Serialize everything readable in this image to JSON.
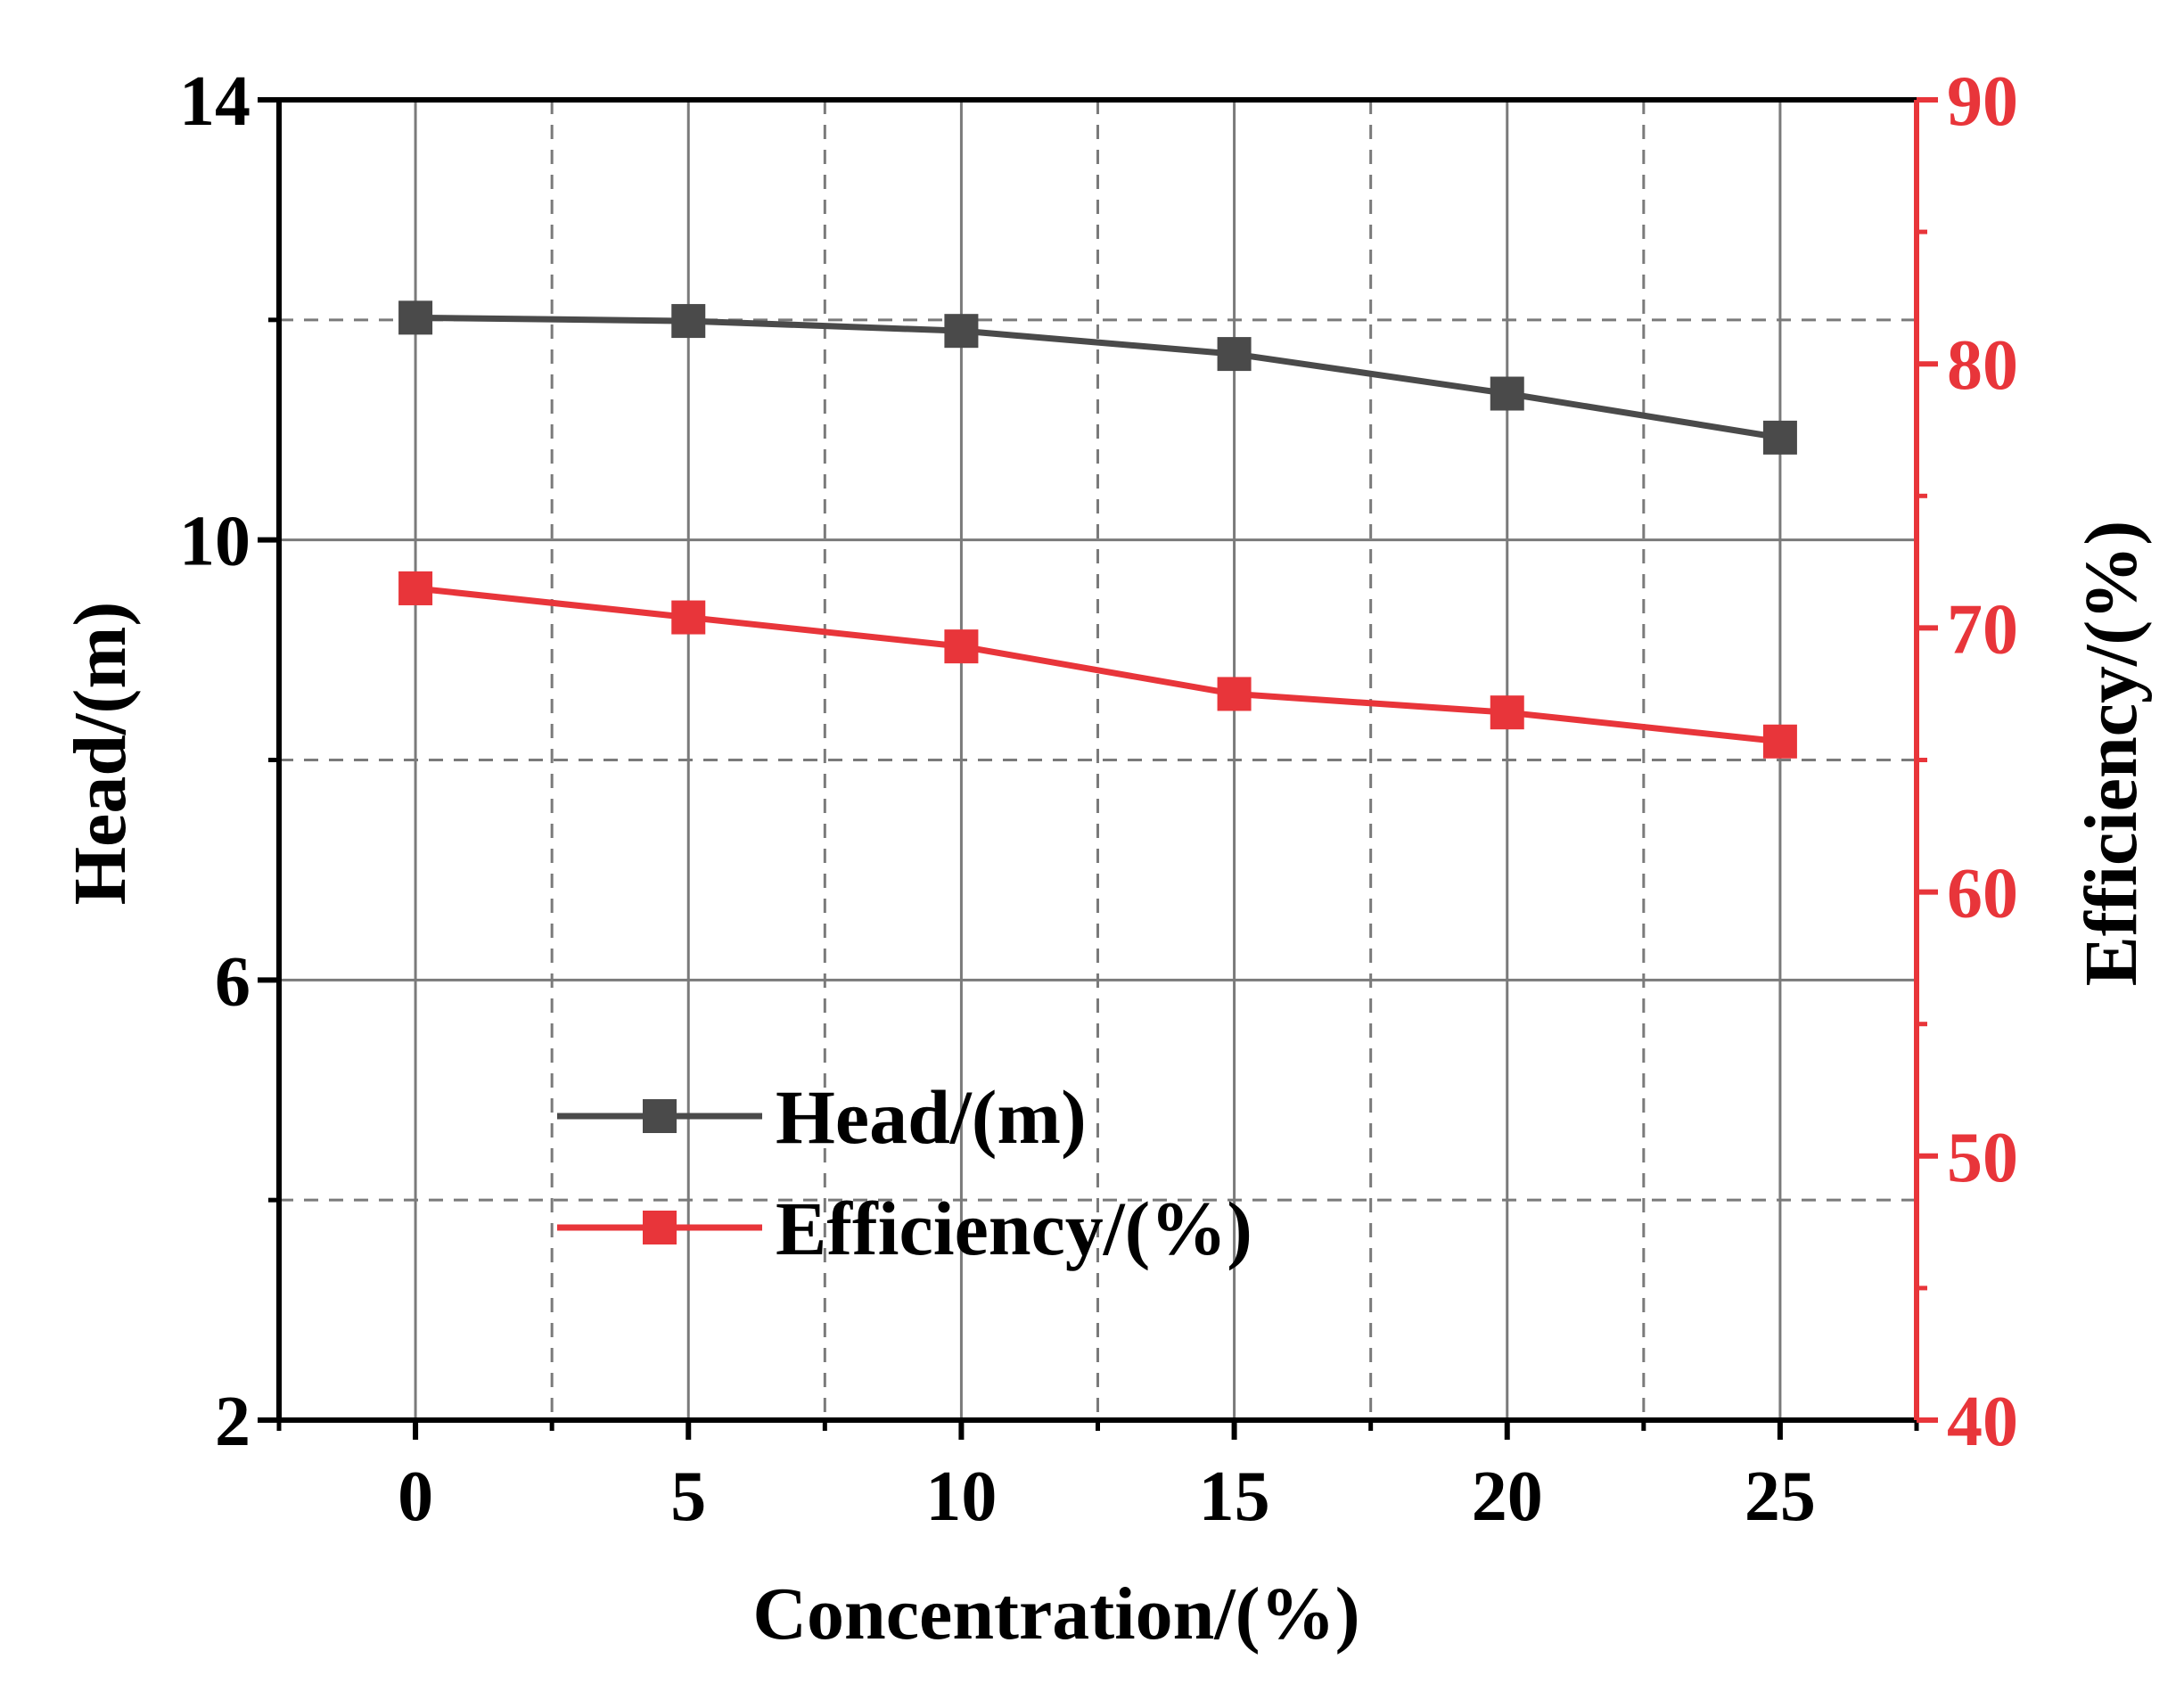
{
  "chart_data": {
    "type": "line",
    "title": "",
    "xlabel": "Concentration/(%)",
    "ylabel": "Head/(m)",
    "y2label": "Efficiency/(%)",
    "x": [
      0,
      5,
      10,
      15,
      20,
      25
    ],
    "xticks": [
      "0",
      "5",
      "10",
      "15",
      "20",
      "25"
    ],
    "xlim": [
      -2.5,
      27.5
    ],
    "ylim": [
      2,
      14
    ],
    "yticks": [
      "2",
      "6",
      "10",
      "14"
    ],
    "y2lim": [
      40,
      90
    ],
    "y2ticks": [
      "40",
      "50",
      "60",
      "70",
      "80",
      "90"
    ],
    "grid": true,
    "legend_position": "center-left",
    "series": [
      {
        "name": "Head/(m)",
        "axis": "left",
        "color": "#4a4a4a",
        "marker": "square",
        "values": [
          12.02,
          11.99,
          11.9,
          11.69,
          11.33,
          10.93
        ]
      },
      {
        "name": "Efficiency/(%)",
        "axis": "right",
        "color": "#e8353a",
        "marker": "square",
        "values": [
          71.5,
          70.4,
          69.3,
          67.5,
          66.8,
          65.7
        ]
      }
    ],
    "colors": {
      "axis": "#000000",
      "right_axis": "#e8353a",
      "grid": "#7a7a7a"
    }
  }
}
